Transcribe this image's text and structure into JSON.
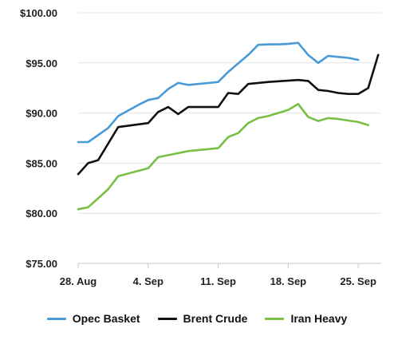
{
  "chart_data": {
    "type": "line",
    "title": "",
    "xlabel": "",
    "ylabel": "",
    "ylim": [
      75,
      100
    ],
    "y_ticks": [
      "$75.00",
      "$80.00",
      "$85.00",
      "$90.00",
      "$95.00",
      "$100.00"
    ],
    "x_ticks": [
      {
        "label": "28. Aug",
        "x": 0
      },
      {
        "label": "4. Sep",
        "x": 7
      },
      {
        "label": "11. Sep",
        "x": 14
      },
      {
        "label": "18. Sep",
        "x": 21
      },
      {
        "label": "25. Sep",
        "x": 28
      }
    ],
    "grid": "horizontal",
    "legend_position": "bottom",
    "series": [
      {
        "name": "Opec Basket",
        "color": "#4a9ad6",
        "points": [
          [
            0,
            87.1
          ],
          [
            1,
            87.1
          ],
          [
            3,
            88.5
          ],
          [
            4,
            89.7
          ],
          [
            6,
            90.8
          ],
          [
            7,
            91.3
          ],
          [
            8,
            91.5
          ],
          [
            9,
            92.4
          ],
          [
            10,
            93.0
          ],
          [
            11,
            92.8
          ],
          [
            12,
            92.9
          ],
          [
            14,
            93.1
          ],
          [
            15,
            94.1
          ],
          [
            17,
            95.8
          ],
          [
            18,
            96.8
          ],
          [
            19,
            96.85
          ],
          [
            20,
            96.85
          ],
          [
            21,
            96.9
          ],
          [
            22,
            97.0
          ],
          [
            23,
            95.8
          ],
          [
            24,
            95.0
          ],
          [
            25,
            95.7
          ],
          [
            26,
            95.6
          ],
          [
            27,
            95.5
          ],
          [
            28,
            95.3
          ]
        ]
      },
      {
        "name": "Brent Crude",
        "color": "#111111",
        "points": [
          [
            0,
            83.9
          ],
          [
            1,
            85.0
          ],
          [
            2,
            85.3
          ],
          [
            4,
            88.6
          ],
          [
            7,
            89.0
          ],
          [
            8,
            90.1
          ],
          [
            9,
            90.6
          ],
          [
            10,
            89.9
          ],
          [
            11,
            90.6
          ],
          [
            12,
            90.6
          ],
          [
            14,
            90.6
          ],
          [
            15,
            92.0
          ],
          [
            16,
            91.9
          ],
          [
            17,
            92.9
          ],
          [
            19,
            93.1
          ],
          [
            22,
            93.3
          ],
          [
            23,
            93.2
          ],
          [
            24,
            92.3
          ],
          [
            25,
            92.2
          ],
          [
            26,
            92.0
          ],
          [
            27,
            91.9
          ],
          [
            28,
            91.9
          ],
          [
            29,
            92.5
          ],
          [
            30,
            95.8
          ]
        ]
      },
      {
        "name": "Iran Heavy",
        "color": "#77c043",
        "points": [
          [
            0,
            80.4
          ],
          [
            1,
            80.6
          ],
          [
            3,
            82.4
          ],
          [
            4,
            83.7
          ],
          [
            7,
            84.5
          ],
          [
            8,
            85.6
          ],
          [
            9,
            85.8
          ],
          [
            11,
            86.2
          ],
          [
            12,
            86.3
          ],
          [
            14,
            86.5
          ],
          [
            15,
            87.6
          ],
          [
            16,
            88.0
          ],
          [
            17,
            89.0
          ],
          [
            18,
            89.5
          ],
          [
            19,
            89.7
          ],
          [
            21,
            90.3
          ],
          [
            22,
            90.9
          ],
          [
            23,
            89.6
          ],
          [
            24,
            89.2
          ],
          [
            25,
            89.5
          ],
          [
            26,
            89.4
          ],
          [
            28,
            89.1
          ],
          [
            29,
            88.8
          ]
        ]
      }
    ]
  }
}
